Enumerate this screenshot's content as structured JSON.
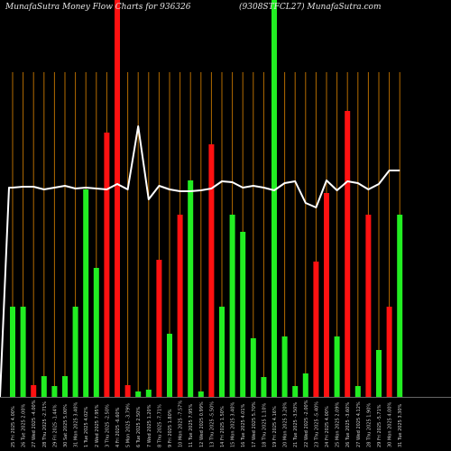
{
  "header": {
    "title_left": "MunafaSutra  Money Flow  Charts for 936326",
    "title_right": "(9308STFCL27)  MunafaSutra.com"
  },
  "chart_data": {
    "type": "bar",
    "title": "MunafaSutra  Money Flow  Charts for 936326",
    "subtitle": "(9308STFCL27)  MunafaSutra.com",
    "background": "#000000",
    "colors": {
      "up": "#22ee22",
      "down": "#ff1111",
      "grid": "#b36b00",
      "line": "#ffffff"
    },
    "grid": true,
    "x_labels": [
      "25 Fri 2025 4.00%",
      "26 Tue 2025 2.00%",
      "27 Wed 2025 -4.00%",
      "28 Thu 2025 -2.71%",
      "29 Fri 2025 -1.44%",
      "30 Sat 2025 5.00%",
      "31 Mon 2025 3.40%",
      "1 Tue 2025 4.02%",
      "2 Wed 2025 7.95%",
      "3 Thu 2025 -2.50%",
      "4 Fri 2025 -6.60%",
      "5 Mon 2025 -3.79%",
      "6 Tue 2025 2.50%",
      "7 Wed 2025 1.20%",
      "8 Thu 2025 -7.71%",
      "9 Fri 2025 1.80%",
      "10 Mon 2025 -7.57%",
      "11 Tue 2025 7.95%",
      "12 Wed 2025 0.99%",
      "13 Thu 2025 -5.50%",
      "14 Fri 2025 1.50%",
      "15 Mon 2025 3.40%",
      "16 Tue 2025 4.01%",
      "17 Wed 2025 5.70%",
      "18 Thu 2025 1.10%",
      "19 Fri 2025 4.16%",
      "20 Mon 2025 3.20%",
      "21 Tue 2025 -3.50%",
      "22 Wed 2025 -2.00%",
      "23 Thu 2025 -5.40%",
      "24 Fri 2025 4.00%",
      "25 Mon 2025 2.09%",
      "26 Tue 2025 -3.60%",
      "27 Wed 2025 4.12%",
      "28 Thu 2025 1.90%",
      "29 Fri 2025 -5.71%",
      "30 Mon 2025 4.00%",
      "31 Tue 2025 3.30%"
    ],
    "bar_values": [
      100,
      100,
      13,
      23,
      12,
      23,
      100,
      230,
      143,
      293,
      440,
      13,
      6,
      8,
      152,
      70,
      202,
      240,
      6,
      280,
      100,
      202,
      183,
      65,
      22,
      440,
      67,
      12,
      26,
      150,
      226,
      67,
      317,
      12,
      202,
      52,
      100,
      202
    ],
    "bar_directions": [
      "up",
      "up",
      "down",
      "up",
      "up",
      "up",
      "up",
      "up",
      "up",
      "down",
      "down",
      "down",
      "up",
      "up",
      "down",
      "up",
      "down",
      "up",
      "up",
      "down",
      "up",
      "up",
      "up",
      "up",
      "up",
      "up",
      "up",
      "up",
      "up",
      "down",
      "down",
      "up",
      "down",
      "up",
      "down",
      "up",
      "down",
      "up"
    ],
    "line_values": [
      232,
      233,
      233,
      230,
      232,
      234,
      231,
      232,
      231,
      230,
      236,
      230,
      300,
      219,
      234,
      230,
      228,
      228,
      229,
      231,
      239,
      238,
      232,
      234,
      232,
      229,
      237,
      239,
      215,
      210,
      240,
      229,
      239,
      237,
      230,
      236,
      251,
      251
    ],
    "ylim": [
      0,
      440
    ]
  }
}
